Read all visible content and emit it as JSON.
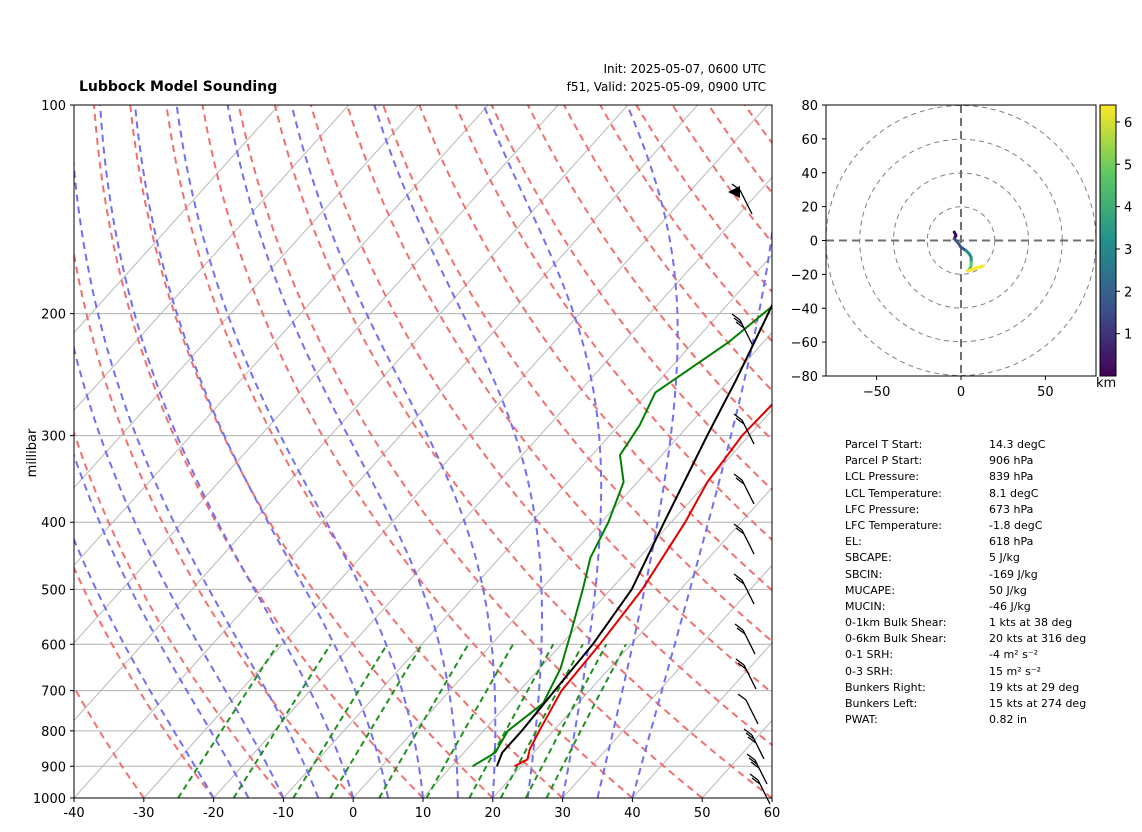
{
  "header": {
    "title": "Lubbock Model Sounding",
    "init": "Init: 2025-05-07, 0600 UTC",
    "valid": "f51, Valid: 2025-05-09, 0900 UTC"
  },
  "skewt": {
    "ylabel": "millibar",
    "pressure_ticks": [
      100,
      200,
      300,
      400,
      500,
      600,
      700,
      800,
      900,
      1000
    ],
    "temp_ticks": [
      -40,
      -30,
      -20,
      -10,
      0,
      10,
      20,
      30,
      40,
      50,
      60
    ]
  },
  "hodograph": {
    "ticks": [
      "-50",
      "0",
      "50"
    ],
    "yticks": [
      "80",
      "60",
      "40",
      "20",
      "0",
      "-20",
      "-40",
      "-60",
      "-80"
    ],
    "colorbar_label": "km",
    "colorbar_ticks": [
      "1",
      "2",
      "3",
      "4",
      "5",
      "6"
    ]
  },
  "params": [
    {
      "label": "Parcel T Start:",
      "value": "14.3 degC"
    },
    {
      "label": "Parcel P Start:",
      "value": "906 hPa"
    },
    {
      "label": "LCL Pressure:",
      "value": "839 hPa"
    },
    {
      "label": "LCL Temperature:",
      "value": "8.1 degC"
    },
    {
      "label": "LFC Pressure:",
      "value": "673 hPa"
    },
    {
      "label": "LFC Temperature:",
      "value": "-1.8 degC"
    },
    {
      "label": "EL:",
      "value": "618 hPa"
    },
    {
      "label": "SBCAPE:",
      "value": "5 J/kg"
    },
    {
      "label": "SBCIN:",
      "value": "-169 J/kg"
    },
    {
      "label": "MUCAPE:",
      "value": "50 J/kg"
    },
    {
      "label": "MUCIN:",
      "value": "-46 J/kg"
    },
    {
      "label": "0-1km Bulk Shear:",
      "value": "1 kts at 38 deg"
    },
    {
      "label": "0-6km Bulk Shear:",
      "value": "20 kts at 316 deg"
    },
    {
      "label": "0-1 SRH:",
      "value": "-4 m² s⁻²"
    },
    {
      "label": "0-3 SRH:",
      "value": "15 m² s⁻²"
    },
    {
      "label": "Bunkers Right:",
      "value": "19 kts at 29 deg"
    },
    {
      "label": "Bunkers Left:",
      "value": "15 kts at 274 deg"
    },
    {
      "label": "PWAT:",
      "value": "0.82 in"
    }
  ],
  "chart_data": [
    {
      "type": "line",
      "title": "Lubbock Model Sounding",
      "ylabel": "millibar",
      "xlim": [
        -40,
        60
      ],
      "ylim": [
        1000,
        100
      ],
      "y_scale": "log",
      "grid": true,
      "series": [
        {
          "color": "#e00000",
          "points": [
            [
              19,
              900
            ],
            [
              20,
              880
            ],
            [
              19,
              850
            ],
            [
              18,
              800
            ],
            [
              16,
              700
            ],
            [
              15.5,
              600
            ],
            [
              14.5,
              500
            ],
            [
              12,
              400
            ],
            [
              10,
              350
            ],
            [
              9,
              300
            ],
            [
              9.5,
              250
            ],
            [
              13,
              220
            ],
            [
              17,
              180
            ],
            [
              25,
              140
            ],
            [
              31,
              115
            ],
            [
              35,
              100
            ]
          ]
        },
        {
          "color": "#008000",
          "points": [
            [
              13,
              900
            ],
            [
              14.5,
              860
            ],
            [
              13.5,
              800
            ],
            [
              15,
              730
            ],
            [
              13,
              650
            ],
            [
              10,
              580
            ],
            [
              6,
              500
            ],
            [
              3,
              450
            ],
            [
              1,
              400
            ],
            [
              -2,
              350
            ],
            [
              -6,
              320
            ],
            [
              -7,
              290
            ],
            [
              -9,
              260
            ],
            [
              -5,
              220
            ],
            [
              -3,
              190
            ],
            [
              -4,
              160
            ],
            [
              -7,
              140
            ],
            [
              -12,
              120
            ],
            [
              -14,
              115
            ],
            [
              -9,
              100
            ]
          ]
        },
        {
          "color": "#000000",
          "points": [
            [
              16.5,
              900
            ],
            [
              15.5,
              860
            ],
            [
              15.5,
              800
            ],
            [
              15,
              700
            ],
            [
              14.5,
              600
            ],
            [
              13,
              500
            ],
            [
              9,
              400
            ],
            [
              4,
              300
            ],
            [
              1,
              250
            ],
            [
              -3,
              200
            ],
            [
              -5,
              180
            ],
            [
              -8,
              150
            ],
            [
              -10,
              120
            ],
            [
              -11,
              100
            ]
          ]
        }
      ]
    },
    {
      "type": "scatter",
      "xlim": [
        -80,
        80
      ],
      "ylim": [
        -80,
        80
      ],
      "ring_radii": [
        20,
        40,
        60,
        80
      ],
      "colorbar": {
        "label": "km",
        "range": [
          0,
          6.4
        ]
      },
      "points": [
        [
          -4,
          5
        ],
        [
          -3,
          3
        ],
        [
          -4,
          1
        ],
        [
          -2,
          -1
        ],
        [
          0,
          -4
        ],
        [
          3,
          -6
        ],
        [
          5,
          -8
        ],
        [
          6,
          -10
        ],
        [
          6,
          -13
        ],
        [
          6,
          -15
        ],
        [
          5,
          -17
        ],
        [
          4,
          -18
        ],
        [
          7,
          -17
        ],
        [
          10,
          -16
        ],
        [
          13,
          -15
        ]
      ]
    }
  ]
}
